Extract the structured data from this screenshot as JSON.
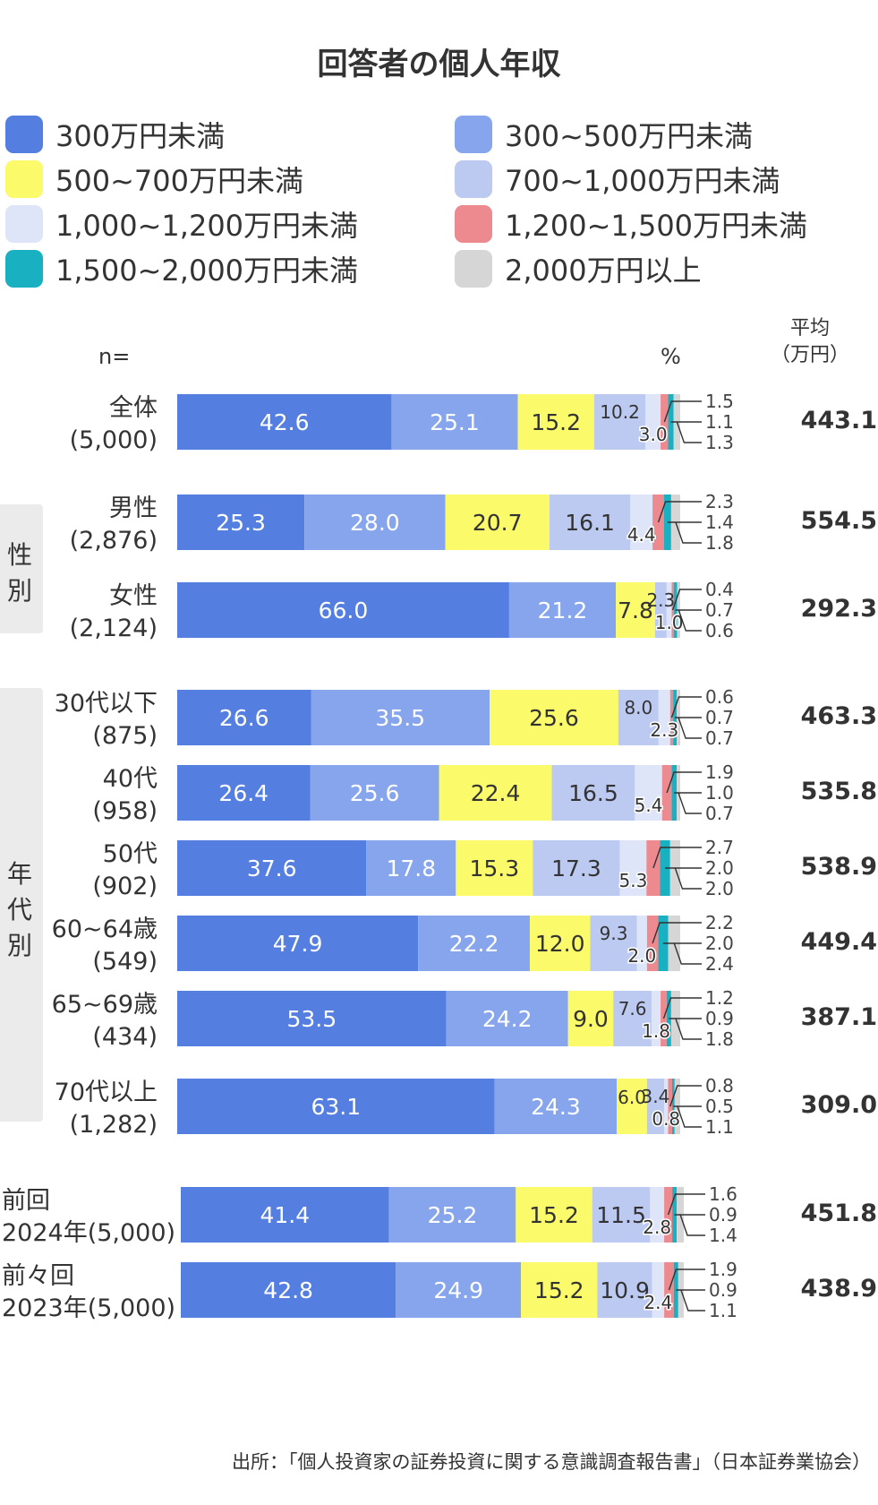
{
  "title": "回答者の個人年収",
  "legend": [
    {
      "label": "300万円未満",
      "color": "#547ee0"
    },
    {
      "label": "300~500万円未満",
      "color": "#86a5ec"
    },
    {
      "label": "500~700万円未満",
      "color": "#fafa6a"
    },
    {
      "label": "700~1,000万円未満",
      "color": "#bccaf2"
    },
    {
      "label": "1,000~1,200万円未満",
      "color": "#dee5f8"
    },
    {
      "label": "1,200~1,500万円未満",
      "color": "#ec8a8f"
    },
    {
      "label": "1,500~2,000万円未満",
      "color": "#19b0c2"
    },
    {
      "label": "2,000万円以上",
      "color": "#d6d6d6"
    }
  ],
  "header": {
    "n_label": "n=",
    "pct_label": "%",
    "avg_label_1": "平均",
    "avg_label_2": "（万円）"
  },
  "groups": {
    "gender": "性別",
    "age": "年代別"
  },
  "source": "出所：「個人投資家の証券投資に関する意識調査報告書」（日本証券業協会）",
  "chart_data": {
    "type": "bar",
    "orientation": "horizontal",
    "stacked": true,
    "unit": "%",
    "series_names": [
      "300万円未満",
      "300~500万円未満",
      "500~700万円未満",
      "700~1,000万円未満",
      "1,000~1,200万円未満",
      "1,200~1,500万円未満",
      "1,500~2,000万円未満",
      "2,000万円以上"
    ],
    "rows": [
      {
        "label1": "全体",
        "label2": "(5,000)",
        "values": [
          42.6,
          25.1,
          15.2,
          10.2,
          3.0,
          1.5,
          1.1,
          1.3
        ],
        "avg": "443.1"
      },
      {
        "label1": "男性",
        "label2": "(2,876)",
        "values": [
          25.3,
          28.0,
          20.7,
          16.1,
          4.4,
          2.3,
          1.4,
          1.8
        ],
        "avg": "554.5"
      },
      {
        "label1": "女性",
        "label2": "(2,124)",
        "values": [
          66.0,
          21.2,
          7.8,
          2.3,
          1.0,
          0.4,
          0.7,
          0.6
        ],
        "avg": "292.3"
      },
      {
        "label1": "30代以下",
        "label2": "(875)",
        "values": [
          26.6,
          35.5,
          25.6,
          8.0,
          2.3,
          0.6,
          0.7,
          0.7
        ],
        "avg": "463.3"
      },
      {
        "label1": "40代",
        "label2": "(958)",
        "values": [
          26.4,
          25.6,
          22.4,
          16.5,
          5.4,
          1.9,
          1.0,
          0.7
        ],
        "avg": "535.8"
      },
      {
        "label1": "50代",
        "label2": "(902)",
        "values": [
          37.6,
          17.8,
          15.3,
          17.3,
          5.3,
          2.7,
          2.0,
          2.0
        ],
        "avg": "538.9"
      },
      {
        "label1": "60~64歳",
        "label2": "(549)",
        "values": [
          47.9,
          22.2,
          12.0,
          9.3,
          2.0,
          2.2,
          2.0,
          2.4
        ],
        "avg": "449.4"
      },
      {
        "label1": "65~69歳",
        "label2": "(434)",
        "values": [
          53.5,
          24.2,
          9.0,
          7.6,
          1.8,
          1.2,
          0.9,
          1.8
        ],
        "avg": "387.1"
      },
      {
        "label1": "70代以上",
        "label2": "(1,282)",
        "values": [
          63.1,
          24.3,
          6.0,
          3.4,
          0.8,
          0.8,
          0.5,
          1.1
        ],
        "avg": "309.0"
      },
      {
        "label1": "前回",
        "label2": "2024年(5,000)",
        "values": [
          41.4,
          25.2,
          15.2,
          11.5,
          2.8,
          1.6,
          0.9,
          1.4
        ],
        "avg": "451.8"
      },
      {
        "label1": "前々回",
        "label2": "2023年(5,000)",
        "values": [
          42.8,
          24.9,
          15.2,
          10.9,
          2.4,
          1.9,
          0.9,
          1.1
        ],
        "avg": "438.9"
      }
    ]
  }
}
